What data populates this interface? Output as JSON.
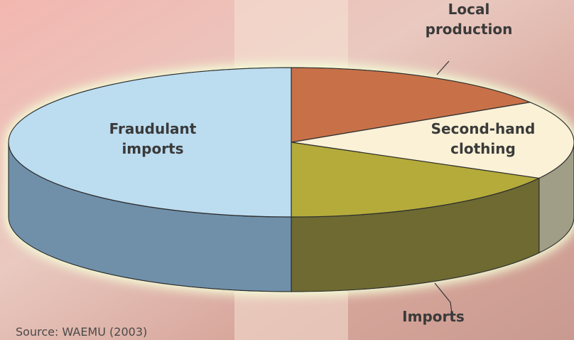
{
  "chart_data": {
    "type": "pie",
    "categories": [
      "Local production",
      "Second-hand clothing",
      "Imports",
      "Fraudulant imports"
    ],
    "values": [
      16,
      17,
      17,
      50
    ],
    "colors": [
      "#c8714a",
      "#fbf1d6",
      "#b4ab3a",
      "#bcdcf0"
    ],
    "side_colors": [
      "#8a4a30",
      "#a09e86",
      "#6e6b32",
      "#6f90aa"
    ],
    "source": "Source: WAEMU (2003)"
  }
}
